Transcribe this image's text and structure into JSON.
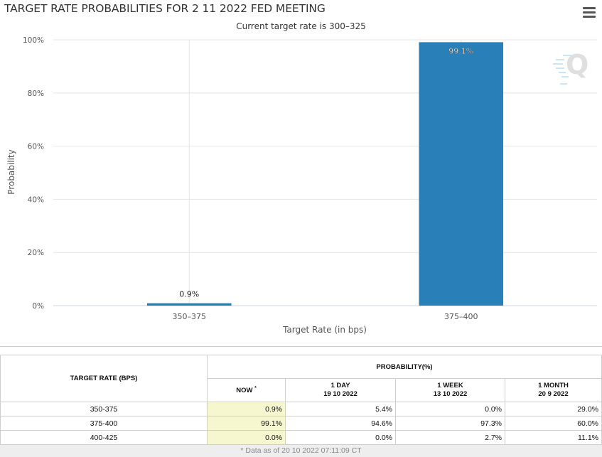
{
  "header": {
    "title": "TARGET RATE PROBABILITIES FOR 2 11 2022 FED MEETING",
    "subtitle": "Current target rate is 300–325",
    "menu_icon": "hamburger-menu-icon",
    "watermark_icon": "quikstrike-q-logo-icon"
  },
  "chart_data": {
    "type": "bar",
    "title": "TARGET RATE PROBABILITIES FOR 2 11 2022 FED MEETING",
    "subtitle": "Current target rate is 300–325",
    "categories": [
      "350–375",
      "375–400"
    ],
    "values": [
      0.9,
      99.1
    ],
    "data_labels": [
      "0.9%",
      "99.1%"
    ],
    "xlabel": "Target Rate (in bps)",
    "ylabel": "Probability",
    "ylim": [
      0,
      100
    ],
    "yticks": [
      "0%",
      "20%",
      "40%",
      "60%",
      "80%",
      "100%"
    ],
    "ytick_values": [
      0,
      20,
      40,
      60,
      80,
      100
    ],
    "bar_color": "#2980b9",
    "grid": true
  },
  "table": {
    "col_rate_header": "TARGET RATE (BPS)",
    "prob_header": "PROBABILITY(%)",
    "sub_headers": [
      {
        "label": "NOW",
        "date": ""
      },
      {
        "label": "1 DAY",
        "date": "19 10 2022"
      },
      {
        "label": "1 WEEK",
        "date": "13 10 2022"
      },
      {
        "label": "1 MONTH",
        "date": "20 9 2022"
      }
    ],
    "now_marker": "*",
    "rows": [
      {
        "rate": "350-375",
        "now": "0.9%",
        "day": "5.4%",
        "week": "0.0%",
        "month": "29.0%"
      },
      {
        "rate": "375-400",
        "now": "99.1%",
        "day": "94.6%",
        "week": "97.3%",
        "month": "60.0%"
      },
      {
        "rate": "400-425",
        "now": "0.0%",
        "day": "0.0%",
        "week": "2.7%",
        "month": "11.1%"
      }
    ]
  },
  "footnote": "* Data as of 20 10 2022 07:11:09 CT"
}
